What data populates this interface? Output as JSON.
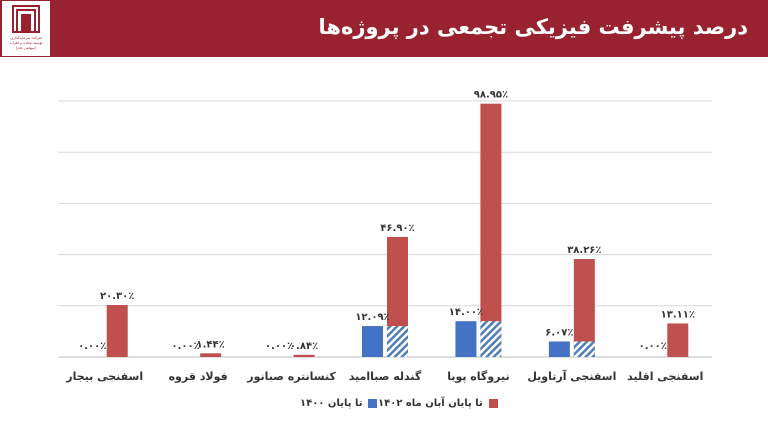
{
  "header": {
    "title": "درصد پیشرفت فیزیکی تجمعی در پروژه‌ها",
    "logo_line1": "شرکت سرمایه‌گذاری",
    "logo_line2": "توسعه معادن و فلزات",
    "logo_line3": "(سهامی عام)"
  },
  "colors": {
    "series1": "#4472c4",
    "series2": "#c0504d",
    "header_bg": "#98222f"
  },
  "chart_data": {
    "type": "bar",
    "title": "درصد پیشرفت فیزیکی تجمعی در پروژه‌ها",
    "categories": [
      "اسفنجی اقلید",
      "اسفنجی آرتاویل",
      "نیروگاه پویا",
      "گندله صباامید",
      "کنسانتره صبانور",
      "فولاد قروه",
      "اسفنجی بیجار"
    ],
    "series": [
      {
        "name": "تا پایان ۱۴۰۰",
        "values": [
          0.0,
          6.07,
          14.0,
          12.09,
          0.0,
          0.0,
          0.0
        ],
        "labels": [
          "۰.۰۰٪",
          "۶.۰۷٪",
          "۱۴.۰۰٪",
          "۱۲.۰۹٪",
          "۰.۰۰٪",
          "۰.۰۰٪",
          "۰.۰۰٪"
        ]
      },
      {
        "name": "تا پایان آبان ماه ۱۴۰۲",
        "values": [
          13.11,
          38.26,
          98.95,
          46.9,
          0.84,
          1.44,
          20.3
        ],
        "labels": [
          "۱۳.۱۱٪",
          "۳۸.۲۶٪",
          "۹۸.۹۵٪",
          "۴۶.۹۰٪",
          "۰.۸۴٪",
          "۱.۴۴٪",
          "۲۰.۳۰٪"
        ]
      }
    ],
    "ylim": [
      0,
      100
    ],
    "grid": true,
    "legend": "bottom",
    "category_order": "right-to-left"
  }
}
